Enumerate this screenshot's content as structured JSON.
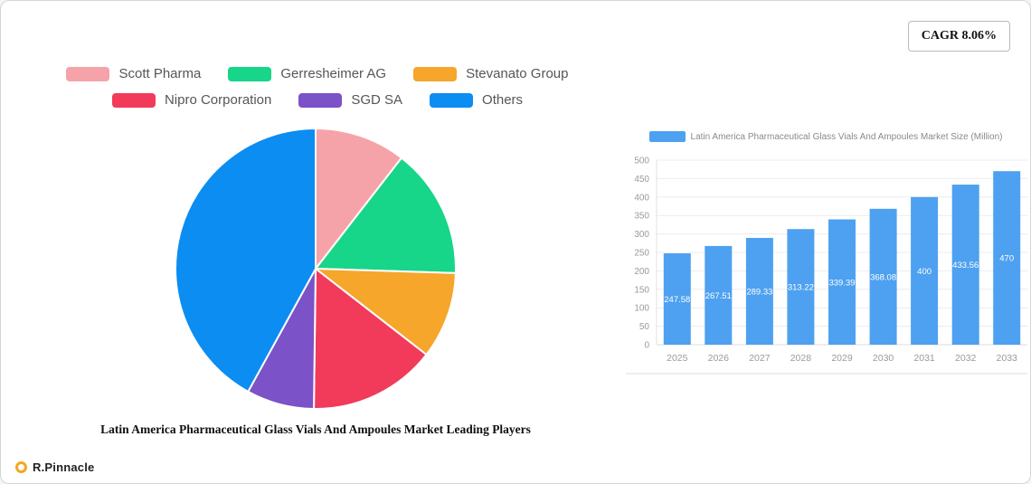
{
  "cagr": {
    "label": "CAGR 8.06%"
  },
  "logo": {
    "text": "R.Pinnacle"
  },
  "chart_data": [
    {
      "type": "pie",
      "title": "Latin America Pharmaceutical Glass Vials And Ampoules Market Leading Players",
      "labels": [
        "Scott Pharma",
        "Gerresheimer AG",
        "Stevanato Group",
        "Nipro Corporation",
        "SGD SA",
        "Others"
      ],
      "values": [
        10.5,
        15,
        10,
        14.7,
        7.8,
        42
      ],
      "values_unit": "percent (estimated from slice angles)",
      "colors": [
        "#F5A3A8",
        "#17D589",
        "#F5A62B",
        "#F23A5B",
        "#7B52C7",
        "#0B8DF2"
      ],
      "legend_position": "top",
      "legend_rows": [
        [
          0,
          1,
          2
        ],
        [
          3,
          4,
          5
        ]
      ],
      "start_angle_deg": -90,
      "direction": "clockwise"
    },
    {
      "type": "bar",
      "legend_label": "Latin America Pharmaceutical Glass Vials And Ampoules Market Size (Million)",
      "categories": [
        "2025",
        "2026",
        "2027",
        "2028",
        "2029",
        "2030",
        "2031",
        "2032",
        "2033"
      ],
      "values": [
        247.58,
        267.51,
        289.33,
        313.22,
        339.39,
        368.08,
        400,
        433.56,
        470
      ],
      "value_labels": [
        "247.58",
        "267.51",
        "289.33",
        "313.22",
        "339.39",
        "368.08",
        "400",
        "433.56",
        "470"
      ],
      "ylim": [
        0,
        500
      ],
      "ytick_step": 50,
      "bar_color": "#4DA1F0",
      "grid": true,
      "legend_position": "top"
    }
  ]
}
